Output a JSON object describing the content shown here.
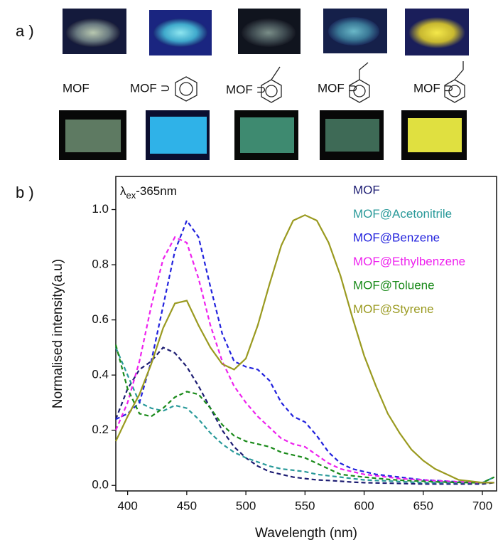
{
  "panel_a": {
    "label": "a )",
    "captions": [
      "MOF",
      "MOF ⊃",
      "MOF ⊃",
      "MOF ⊃",
      "MOF ⊃"
    ]
  },
  "panel_b_label": "b )",
  "chart_data": {
    "type": "line",
    "annotation": {
      "symbol": "λ",
      "subscript": "ex",
      "text": "-365nm"
    },
    "x_label": "Wavelength (nm)",
    "y_label": "Normalised intensity(a.u)",
    "xlim": [
      390,
      712
    ],
    "ylim": [
      -0.02,
      1.12
    ],
    "xticks": [
      400,
      450,
      500,
      550,
      600,
      650,
      700
    ],
    "yticks": [
      {
        "value": 0,
        "label": "0.0"
      },
      0.2,
      0.4,
      0.6,
      0.8,
      {
        "value": 1,
        "label": "1.0"
      }
    ],
    "x": [
      390,
      400,
      410,
      420,
      430,
      440,
      450,
      460,
      470,
      480,
      490,
      500,
      510,
      520,
      530,
      540,
      550,
      560,
      570,
      580,
      590,
      600,
      610,
      620,
      630,
      640,
      650,
      660,
      670,
      680,
      690,
      700,
      710
    ],
    "series": [
      {
        "name": "MOF",
        "color": "#1c1c72",
        "dashed": true,
        "values": [
          0.24,
          0.35,
          0.42,
          0.45,
          0.5,
          0.48,
          0.43,
          0.36,
          0.28,
          0.2,
          0.14,
          0.1,
          0.07,
          0.05,
          0.04,
          0.03,
          0.025,
          0.02,
          0.018,
          0.015,
          0.012,
          0.01,
          0.009,
          0.008,
          0.007,
          0.006,
          0.005,
          0.005,
          0.005,
          0.005,
          0.005,
          0.005,
          0.01
        ]
      },
      {
        "name": "MOF@Acetonitrile",
        "color": "#2a9a9a",
        "dashed": true,
        "values": [
          0.5,
          0.4,
          0.3,
          0.28,
          0.27,
          0.29,
          0.28,
          0.24,
          0.19,
          0.15,
          0.12,
          0.1,
          0.085,
          0.07,
          0.06,
          0.055,
          0.05,
          0.04,
          0.035,
          0.03,
          0.025,
          0.02,
          0.018,
          0.016,
          0.014,
          0.012,
          0.01,
          0.01,
          0.01,
          0.01,
          0.01,
          0.01,
          0.03
        ]
      },
      {
        "name": "MOF@Benzene",
        "color": "#2222dd",
        "dashed": true,
        "values": [
          0.24,
          0.26,
          0.3,
          0.45,
          0.65,
          0.85,
          0.96,
          0.9,
          0.72,
          0.55,
          0.45,
          0.43,
          0.42,
          0.38,
          0.3,
          0.25,
          0.23,
          0.18,
          0.12,
          0.08,
          0.06,
          0.05,
          0.04,
          0.035,
          0.03,
          0.025,
          0.02,
          0.018,
          0.015,
          0.013,
          0.011,
          0.01,
          0.01
        ]
      },
      {
        "name": "MOF@Ethylbenzene",
        "color": "#ee22ee",
        "dashed": true,
        "values": [
          0.2,
          0.3,
          0.45,
          0.65,
          0.82,
          0.9,
          0.88,
          0.75,
          0.58,
          0.45,
          0.36,
          0.3,
          0.25,
          0.21,
          0.17,
          0.15,
          0.14,
          0.11,
          0.08,
          0.06,
          0.05,
          0.04,
          0.035,
          0.03,
          0.025,
          0.022,
          0.02,
          0.017,
          0.015,
          0.013,
          0.011,
          0.01,
          0.01
        ]
      },
      {
        "name": "MOF@Toluene",
        "color": "#1a8a1a",
        "dashed": true,
        "values": [
          0.51,
          0.35,
          0.26,
          0.25,
          0.28,
          0.32,
          0.34,
          0.33,
          0.28,
          0.22,
          0.18,
          0.16,
          0.15,
          0.14,
          0.12,
          0.11,
          0.1,
          0.08,
          0.06,
          0.04,
          0.035,
          0.03,
          0.026,
          0.022,
          0.019,
          0.017,
          0.015,
          0.013,
          0.012,
          0.011,
          0.01,
          0.01,
          0.03
        ]
      },
      {
        "name": "MOF@Styrene",
        "color": "#9a9a20",
        "dashed": false,
        "values": [
          0.16,
          0.25,
          0.33,
          0.44,
          0.57,
          0.66,
          0.67,
          0.58,
          0.5,
          0.44,
          0.42,
          0.46,
          0.58,
          0.73,
          0.87,
          0.96,
          0.98,
          0.96,
          0.88,
          0.76,
          0.61,
          0.47,
          0.36,
          0.26,
          0.19,
          0.13,
          0.09,
          0.06,
          0.04,
          0.02,
          0.015,
          0.01,
          0.01
        ]
      }
    ]
  }
}
